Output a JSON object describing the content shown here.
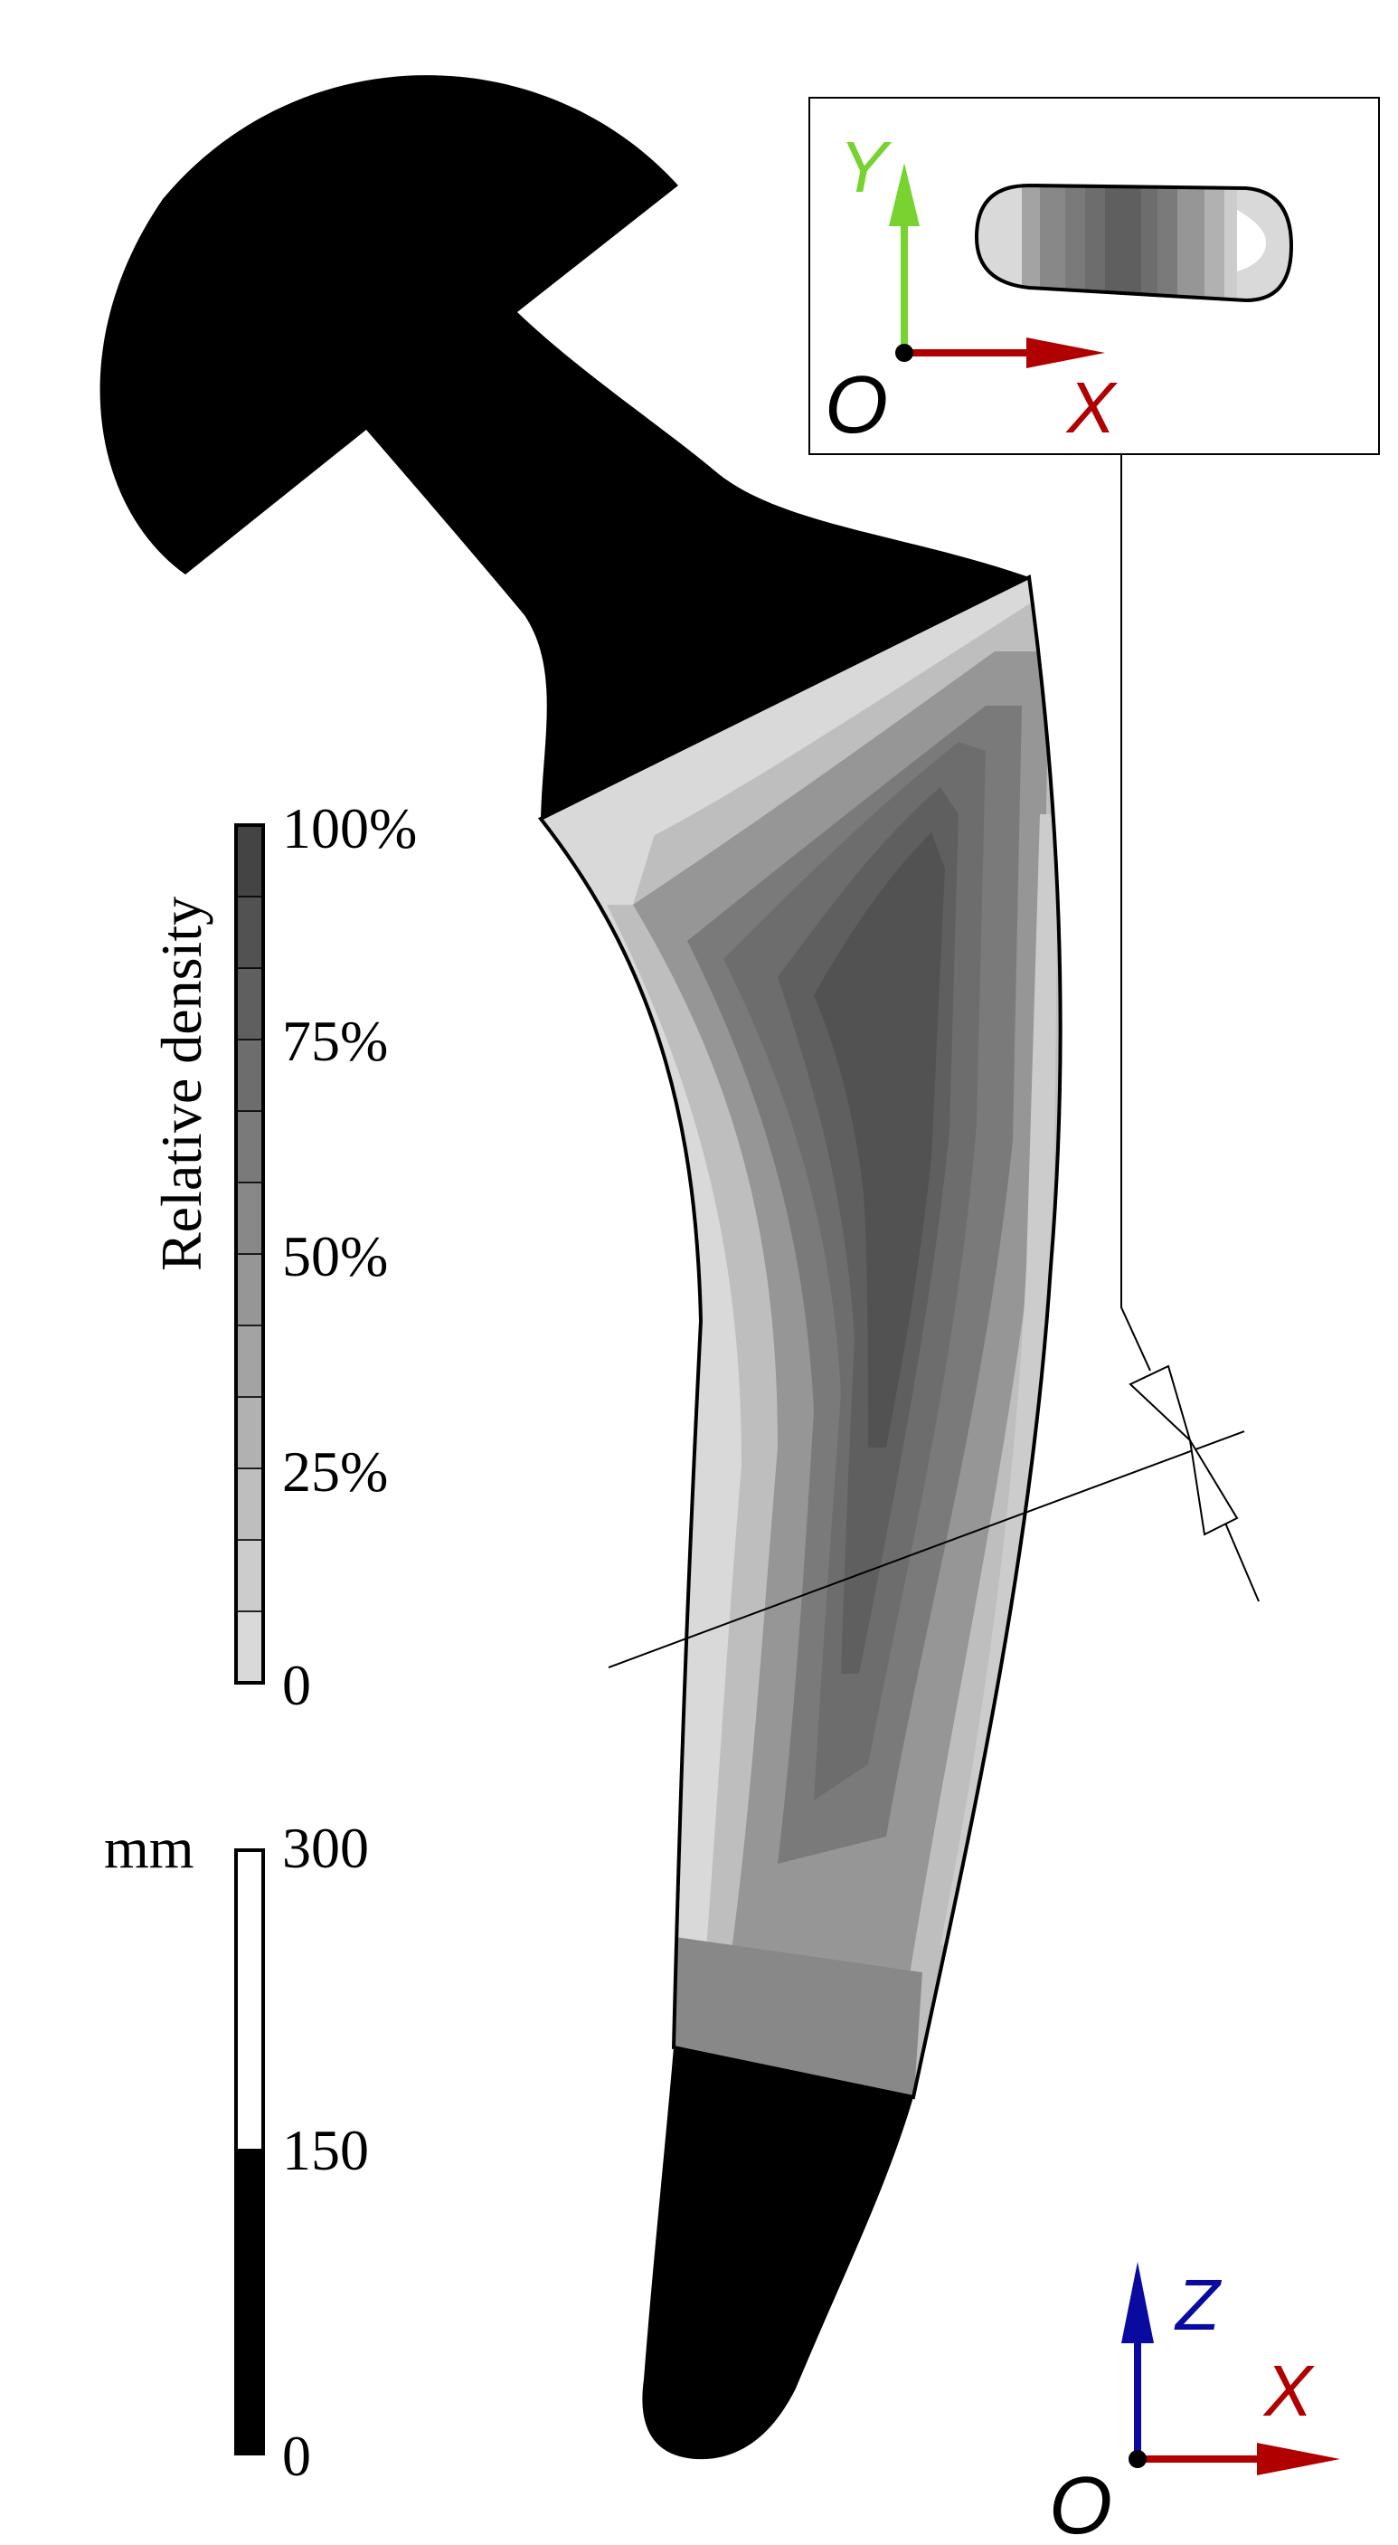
{
  "density_legend": {
    "title": "Relative density",
    "ticks": [
      "100%",
      "75%",
      "50%",
      "25%",
      "0"
    ],
    "levels": 12
  },
  "length_legend": {
    "unit": "mm",
    "ticks": [
      "300",
      "150",
      "0"
    ]
  },
  "inset_axes": {
    "y": "Y",
    "x": "X",
    "origin": "O"
  },
  "main_axes": {
    "z": "Z",
    "x": "X",
    "origin": "O"
  },
  "colors": {
    "x_axis": "#b00000",
    "y_axis": "#78d230",
    "z_axis": "#0a0aa0",
    "solid": "#000000",
    "density_scale": [
      "#d9d9d9",
      "#cccccc",
      "#bebebe",
      "#b1b1b1",
      "#a3a3a3",
      "#969696",
      "#888888",
      "#7a7a7a",
      "#6d6d6d",
      "#5f5f5f",
      "#525252",
      "#444444"
    ]
  }
}
